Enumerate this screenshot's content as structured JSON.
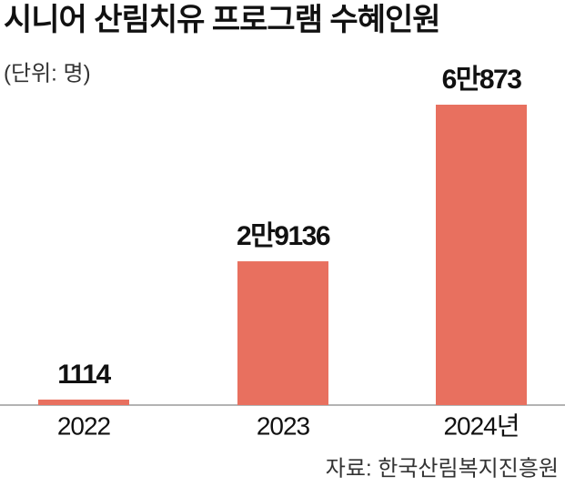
{
  "chart_data": {
    "type": "bar",
    "title": "시니어 산림치유 프로그램 수혜인원",
    "subtitle": "(단위: 명)",
    "categories": [
      "2022",
      "2023",
      "2024년"
    ],
    "values": [
      1114,
      29136,
      60873
    ],
    "value_labels": [
      "1114",
      "2만9136",
      "6만873"
    ],
    "color": "#e8705f",
    "source": "자료: 한국산림복지진흥원"
  }
}
